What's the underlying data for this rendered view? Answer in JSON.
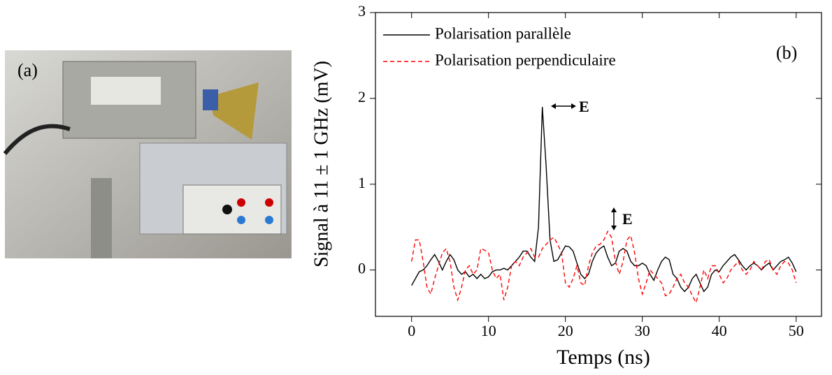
{
  "chart_data": {
    "type": "line",
    "panel_labels": [
      "(a)",
      "(b)"
    ],
    "x_label": "Temps (ns)",
    "y_label": "Signal à 11 ± 1 GHz (mV)",
    "annotations": [
      "E",
      "E"
    ],
    "legend": "upper left",
    "xlim": [
      -4.7,
      53.3
    ],
    "ylim": [
      -0.54,
      3
    ],
    "xticks": [
      0,
      10,
      20,
      30,
      40,
      50
    ],
    "yticks": [
      0,
      1,
      2,
      3
    ],
    "x": [
      0,
      0.5,
      1,
      1.5,
      2,
      2.5,
      3,
      3.5,
      4,
      4.5,
      5,
      5.5,
      6,
      6.5,
      7,
      7.5,
      8,
      8.5,
      9,
      9.5,
      10,
      10.5,
      11,
      11.5,
      12,
      12.5,
      13,
      13.5,
      14,
      14.5,
      15,
      15.5,
      16,
      16.5,
      17,
      17.5,
      18,
      18.5,
      19,
      19.5,
      20,
      20.5,
      21,
      21.5,
      22,
      22.5,
      23,
      23.5,
      24,
      24.5,
      25,
      25.5,
      26,
      26.5,
      27,
      27.5,
      28,
      28.5,
      29,
      29.5,
      30,
      30.5,
      31,
      31.5,
      32,
      32.5,
      33,
      33.5,
      34,
      34.5,
      35,
      35.5,
      36,
      36.5,
      37,
      37.5,
      38,
      38.5,
      39,
      39.5,
      40,
      40.5,
      41,
      41.5,
      42,
      42.5,
      43,
      43.5,
      44,
      44.5,
      45,
      45.5,
      46,
      46.5,
      47,
      47.5,
      48,
      48.5,
      49,
      49.5,
      50
    ],
    "series": [
      {
        "name": "Polarisation parallèle",
        "color": "#000000",
        "dash": "solid",
        "values": [
          -0.18,
          -0.1,
          -0.02,
          0.0,
          0.05,
          0.12,
          0.18,
          0.1,
          0.0,
          0.1,
          0.18,
          0.12,
          0.0,
          -0.05,
          -0.02,
          -0.08,
          -0.05,
          -0.1,
          -0.05,
          -0.1,
          -0.08,
          -0.02,
          0.0,
          0.0,
          0.02,
          0.0,
          0.05,
          0.1,
          0.15,
          0.22,
          0.22,
          0.15,
          0.1,
          0.5,
          1.9,
          1.2,
          0.35,
          0.1,
          0.12,
          0.2,
          0.28,
          0.27,
          0.22,
          0.08,
          -0.05,
          -0.1,
          -0.05,
          0.1,
          0.2,
          0.25,
          0.28,
          0.15,
          0.05,
          0.08,
          0.22,
          0.25,
          0.22,
          0.1,
          0.05,
          0.05,
          0.08,
          0.05,
          -0.05,
          -0.12,
          0.0,
          0.1,
          0.15,
          0.12,
          -0.05,
          -0.1,
          -0.2,
          -0.25,
          -0.2,
          -0.1,
          -0.05,
          -0.15,
          -0.25,
          -0.2,
          -0.05,
          0.0,
          -0.02,
          0.05,
          0.1,
          0.15,
          0.18,
          0.12,
          0.05,
          0.0,
          0.05,
          0.08,
          0.05,
          0.0,
          0.05,
          0.08,
          0.0,
          0.05,
          0.1,
          0.12,
          0.15,
          0.08,
          -0.02
        ]
      },
      {
        "name": "Polarisation perpendiculaire",
        "color": "#ff0000",
        "dash": "dashed",
        "values": [
          0.1,
          0.35,
          0.35,
          0.1,
          -0.2,
          -0.28,
          -0.1,
          0.05,
          0.2,
          0.25,
          0.1,
          -0.2,
          -0.35,
          -0.2,
          0.0,
          0.05,
          -0.05,
          0.0,
          0.25,
          0.23,
          0.2,
          0.0,
          -0.1,
          -0.05,
          -0.35,
          -0.2,
          0.05,
          0.1,
          0.05,
          0.15,
          0.2,
          0.25,
          0.15,
          0.15,
          0.25,
          0.3,
          0.35,
          0.38,
          0.3,
          0.2,
          -0.15,
          -0.2,
          -0.1,
          0.05,
          -0.15,
          -0.18,
          0.05,
          0.2,
          0.28,
          0.3,
          0.35,
          0.45,
          0.38,
          0.1,
          -0.05,
          0.1,
          0.35,
          0.4,
          0.2,
          -0.1,
          -0.28,
          -0.15,
          0.0,
          -0.05,
          -0.1,
          -0.15,
          -0.3,
          -0.28,
          -0.2,
          -0.1,
          -0.05,
          -0.15,
          -0.2,
          -0.3,
          -0.38,
          -0.2,
          0.0,
          -0.1,
          0.05,
          0.05,
          -0.05,
          -0.15,
          -0.1,
          0.0,
          0.05,
          0.1,
          0.0,
          -0.05,
          0.0,
          0.1,
          0.05,
          0.0,
          0.1,
          0.12,
          0.0,
          -0.05,
          0.05,
          0.1,
          0.08,
          0.0,
          -0.15
        ]
      }
    ]
  }
}
